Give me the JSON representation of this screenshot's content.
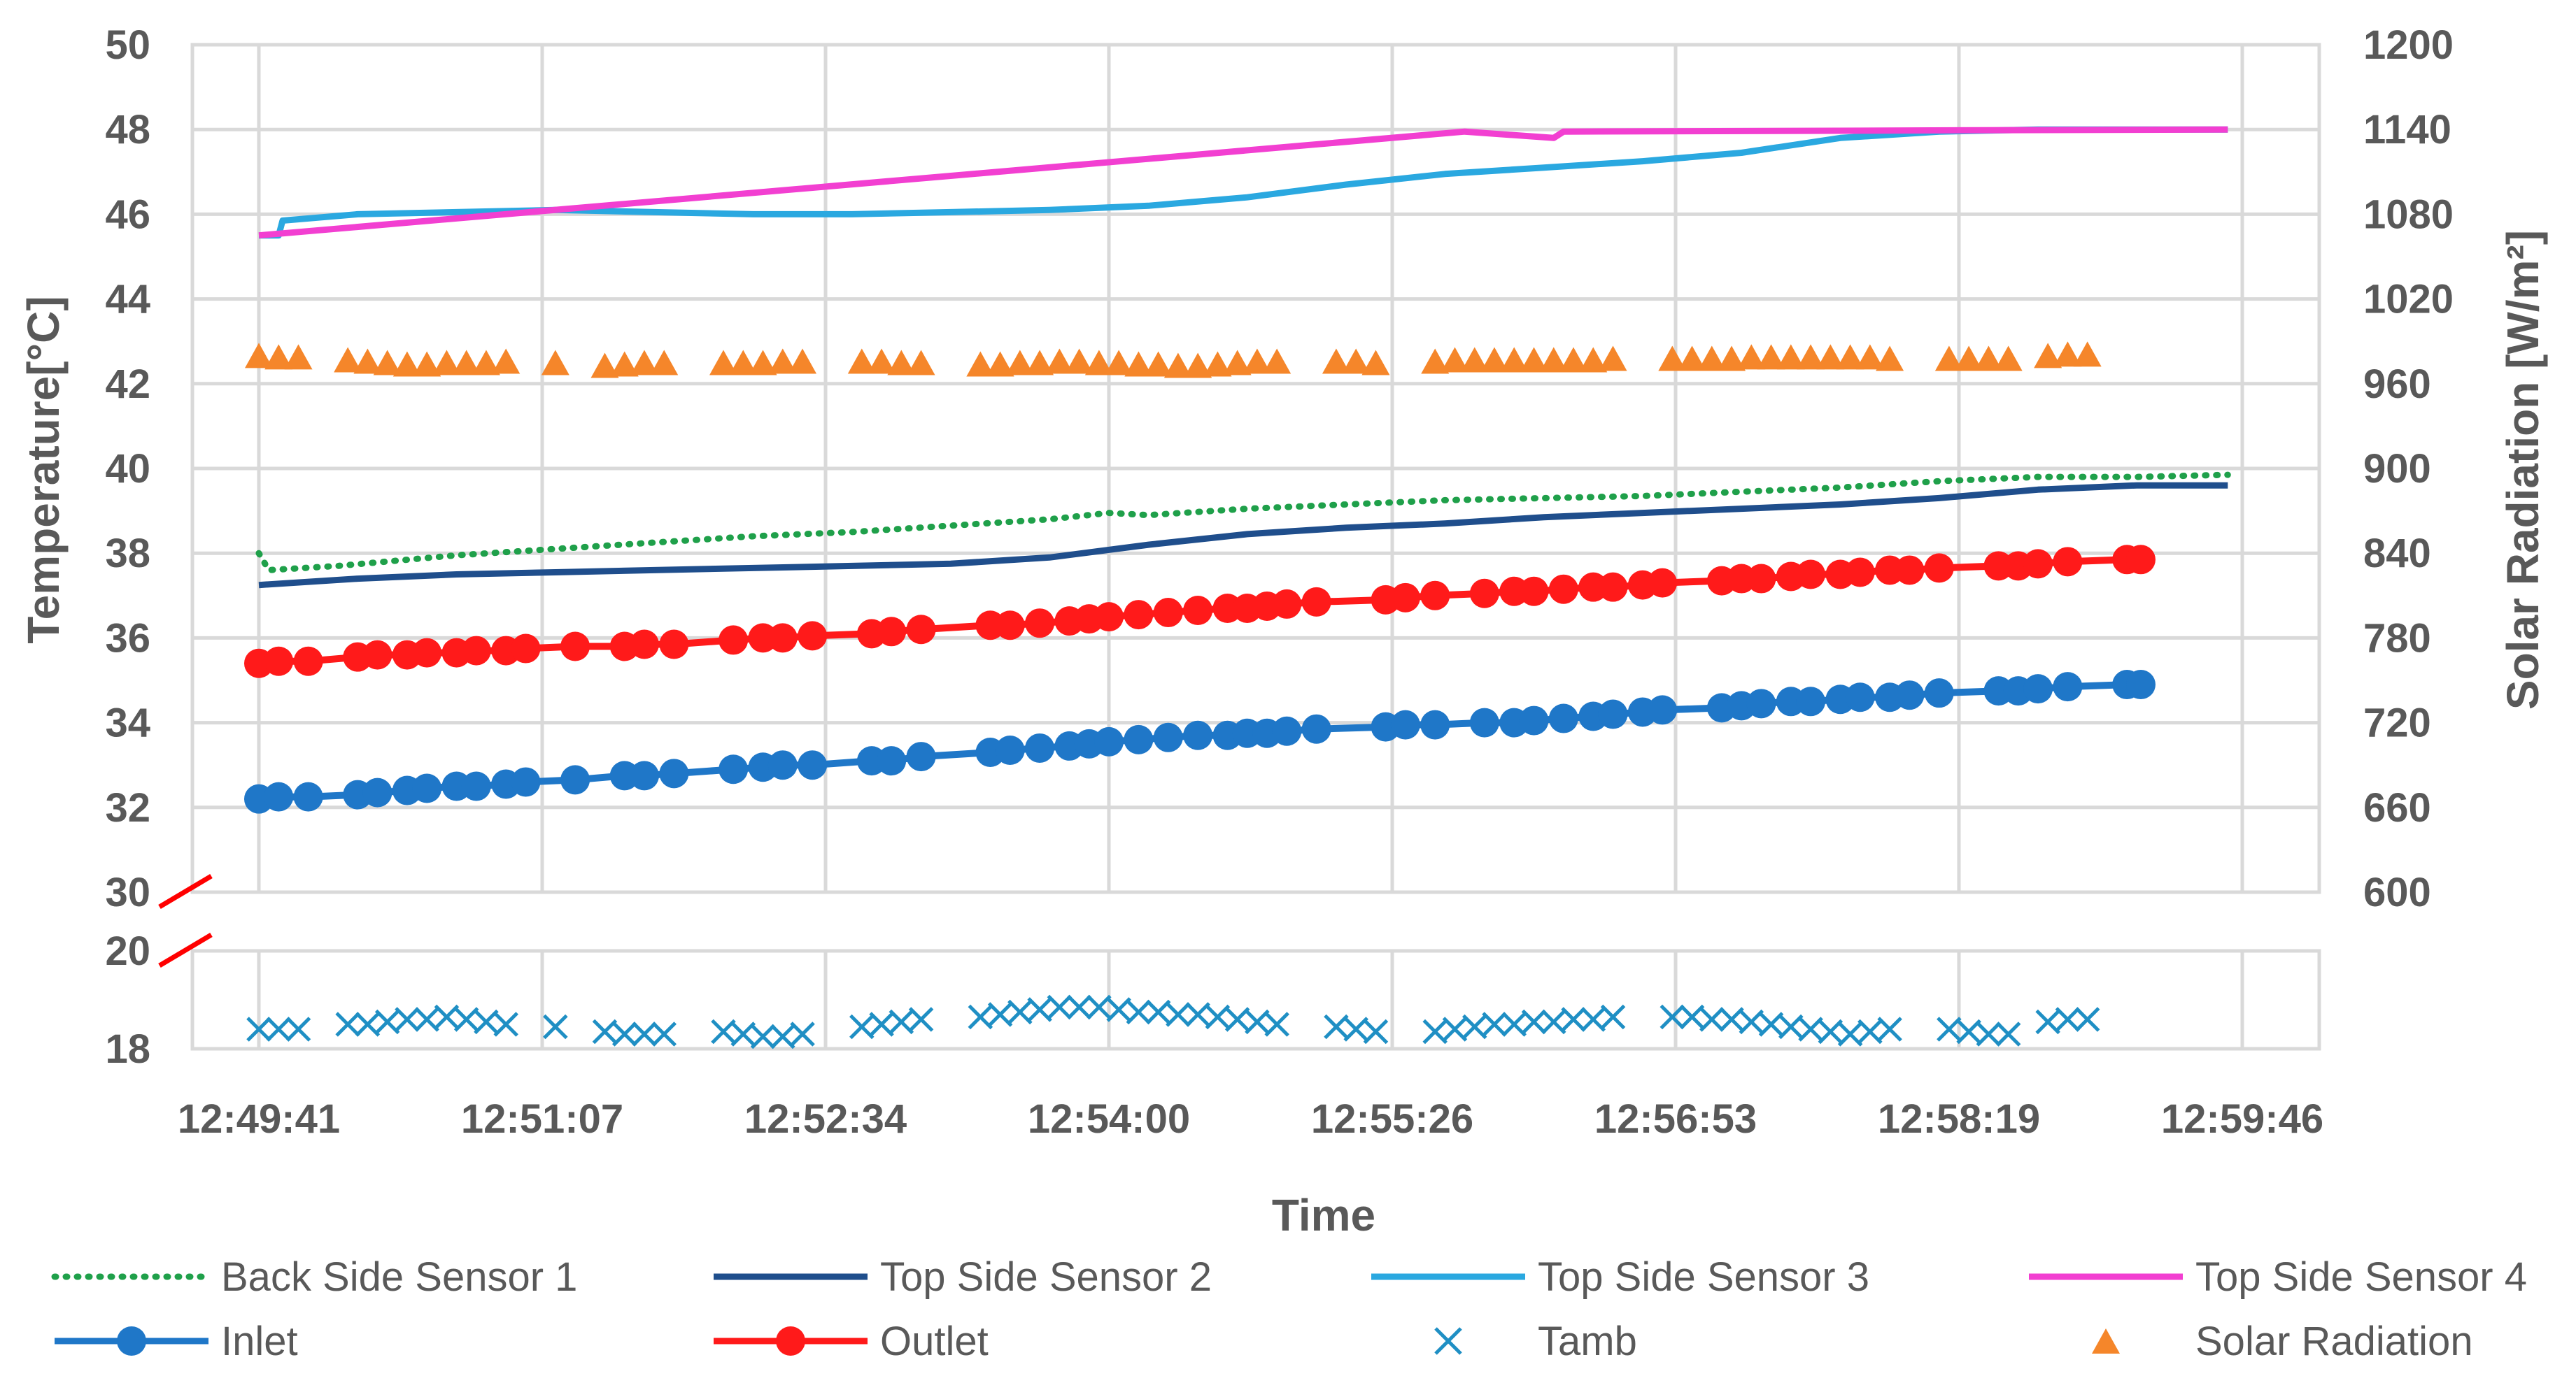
{
  "chart_data": {
    "type": "line",
    "xlabel": "Time",
    "ylabel": "Temperature[°C]",
    "y2label": "Solar Radiation [W/m²]",
    "x_ticks": [
      "12:49:41",
      "12:51:07",
      "12:52:34",
      "12:54:00",
      "12:55:26",
      "12:56:53",
      "12:58:19",
      "12:59:46"
    ],
    "x_range_minutes": [
      0,
      10.08
    ],
    "y_upper_ticks": [
      "50",
      "48",
      "46",
      "44",
      "42",
      "40",
      "38",
      "36",
      "34",
      "32",
      "30"
    ],
    "y_upper_range": [
      30,
      50
    ],
    "y_lower_ticks": [
      "20",
      "18"
    ],
    "y_lower_range": [
      18,
      20
    ],
    "y2_ticks": [
      "1200",
      "1140",
      "1080",
      "1020",
      "960",
      "900",
      "840",
      "780",
      "720",
      "660",
      "600"
    ],
    "y2_range": [
      600,
      1200
    ],
    "series": [
      {
        "name": "Back Side Sensor 1",
        "color": "#1fa04a",
        "style": "dotted",
        "axis": "left",
        "x": [
          0,
          0.05,
          0.4,
          1,
          1.5,
          2,
          2.5,
          3,
          3.5,
          4,
          4.3,
          4.5,
          5,
          5.5,
          6,
          6.5,
          7,
          7.5,
          8,
          8.5,
          9,
          9.5,
          9.96
        ],
        "y": [
          38.0,
          37.6,
          37.7,
          37.95,
          38.1,
          38.25,
          38.4,
          38.5,
          38.65,
          38.8,
          38.95,
          38.9,
          39.05,
          39.15,
          39.25,
          39.3,
          39.35,
          39.45,
          39.55,
          39.7,
          39.8,
          39.8,
          39.85
        ]
      },
      {
        "name": "Top Side Sensor 2",
        "color": "#1f4e8c",
        "style": "solid",
        "axis": "left",
        "x": [
          0,
          0.5,
          1,
          1.5,
          2,
          2.5,
          3,
          3.5,
          4,
          4.5,
          5,
          5.5,
          6,
          6.5,
          7,
          7.5,
          8,
          8.5,
          9,
          9.5,
          9.96
        ],
        "y": [
          37.25,
          37.4,
          37.5,
          37.55,
          37.6,
          37.65,
          37.7,
          37.75,
          37.9,
          38.2,
          38.45,
          38.6,
          38.7,
          38.85,
          38.95,
          39.05,
          39.15,
          39.3,
          39.5,
          39.6,
          39.6
        ]
      },
      {
        "name": "Top Side Sensor 3",
        "color": "#2aa8e0",
        "style": "solid",
        "axis": "left",
        "x": [
          0,
          0.1,
          0.12,
          0.5,
          1,
          1.5,
          2,
          2.5,
          3,
          3.5,
          4,
          4.5,
          5,
          5.5,
          6,
          6.5,
          7,
          7.5,
          8,
          8.5,
          9,
          9.5,
          9.96
        ],
        "y": [
          45.5,
          45.5,
          45.85,
          46.0,
          46.05,
          46.1,
          46.05,
          46.0,
          46.0,
          46.05,
          46.1,
          46.2,
          46.4,
          46.7,
          46.95,
          47.1,
          47.25,
          47.45,
          47.8,
          47.95,
          48.0,
          48.0,
          48.0
        ]
      },
      {
        "name": "Top Side Sensor 4",
        "color": "#f23fd1",
        "style": "solid",
        "axis": "left",
        "x": [
          0,
          6.1,
          6.55,
          6.6,
          9.96
        ],
        "y": [
          45.5,
          47.95,
          47.8,
          47.95,
          48.0
        ]
      },
      {
        "name": "Inlet",
        "color": "#1f77c8",
        "style": "line-marker",
        "marker": "circle",
        "axis": "left",
        "x": [
          0,
          0.1,
          0.25,
          0.5,
          0.6,
          0.75,
          0.85,
          1.0,
          1.1,
          1.25,
          1.35,
          1.6,
          1.85,
          1.95,
          2.1,
          2.4,
          2.55,
          2.65,
          2.8,
          3.1,
          3.2,
          3.35,
          3.7,
          3.8,
          3.95,
          4.1,
          4.2,
          4.3,
          4.45,
          4.6,
          4.75,
          4.9,
          5.0,
          5.1,
          5.2,
          5.35,
          5.7,
          5.8,
          5.95,
          6.2,
          6.35,
          6.45,
          6.6,
          6.75,
          6.85,
          7.0,
          7.1,
          7.4,
          7.5,
          7.6,
          7.75,
          7.85,
          8.0,
          8.1,
          8.25,
          8.35,
          8.5,
          8.8,
          8.9,
          9.0,
          9.15,
          9.45,
          9.52
        ],
        "y": [
          32.2,
          32.25,
          32.25,
          32.3,
          32.35,
          32.4,
          32.45,
          32.5,
          32.5,
          32.55,
          32.6,
          32.65,
          32.75,
          32.75,
          32.8,
          32.9,
          32.95,
          33.0,
          33.0,
          33.1,
          33.1,
          33.2,
          33.3,
          33.35,
          33.4,
          33.45,
          33.5,
          33.55,
          33.6,
          33.65,
          33.7,
          33.7,
          33.75,
          33.75,
          33.8,
          33.85,
          33.9,
          33.95,
          33.95,
          34.0,
          34.0,
          34.05,
          34.1,
          34.15,
          34.2,
          34.25,
          34.3,
          34.35,
          34.4,
          34.45,
          34.5,
          34.5,
          34.55,
          34.6,
          34.6,
          34.65,
          34.7,
          34.75,
          34.75,
          34.8,
          34.85,
          34.9,
          34.9
        ]
      },
      {
        "name": "Outlet",
        "color": "#ff1a1a",
        "style": "line-marker",
        "marker": "circle",
        "axis": "left",
        "x": [
          0,
          0.1,
          0.25,
          0.5,
          0.6,
          0.75,
          0.85,
          1.0,
          1.1,
          1.25,
          1.35,
          1.6,
          1.85,
          1.95,
          2.1,
          2.4,
          2.55,
          2.65,
          2.8,
          3.1,
          3.2,
          3.35,
          3.7,
          3.8,
          3.95,
          4.1,
          4.2,
          4.3,
          4.45,
          4.6,
          4.75,
          4.9,
          5.0,
          5.1,
          5.2,
          5.35,
          5.7,
          5.8,
          5.95,
          6.2,
          6.35,
          6.45,
          6.6,
          6.75,
          6.85,
          7.0,
          7.1,
          7.4,
          7.5,
          7.6,
          7.75,
          7.85,
          8.0,
          8.1,
          8.25,
          8.35,
          8.5,
          8.8,
          8.9,
          9.0,
          9.15,
          9.45,
          9.52
        ],
        "y": [
          35.4,
          35.45,
          35.45,
          35.55,
          35.6,
          35.6,
          35.65,
          35.65,
          35.7,
          35.7,
          35.75,
          35.8,
          35.8,
          35.85,
          35.85,
          35.95,
          36.0,
          36.0,
          36.05,
          36.1,
          36.15,
          36.2,
          36.3,
          36.3,
          36.35,
          36.4,
          36.45,
          36.5,
          36.55,
          36.6,
          36.65,
          36.7,
          36.7,
          36.75,
          36.8,
          36.85,
          36.9,
          36.95,
          37.0,
          37.05,
          37.1,
          37.1,
          37.15,
          37.2,
          37.2,
          37.25,
          37.3,
          37.35,
          37.4,
          37.4,
          37.45,
          37.5,
          37.5,
          37.55,
          37.6,
          37.6,
          37.65,
          37.7,
          37.7,
          37.75,
          37.8,
          37.85,
          37.85
        ]
      },
      {
        "name": "Tamb",
        "color": "#1f8fc4",
        "style": "marker",
        "marker": "x",
        "axis": "left-lower",
        "x": [
          0,
          0.1,
          0.2,
          0.45,
          0.55,
          0.65,
          0.75,
          0.85,
          0.95,
          1.05,
          1.15,
          1.25,
          1.5,
          1.75,
          1.85,
          1.95,
          2.05,
          2.35,
          2.45,
          2.55,
          2.65,
          2.75,
          3.05,
          3.15,
          3.25,
          3.35,
          3.65,
          3.75,
          3.85,
          3.95,
          4.05,
          4.15,
          4.25,
          4.35,
          4.45,
          4.55,
          4.65,
          4.75,
          4.85,
          4.95,
          5.05,
          5.15,
          5.45,
          5.55,
          5.65,
          5.95,
          6.05,
          6.15,
          6.25,
          6.35,
          6.45,
          6.55,
          6.65,
          6.75,
          6.85,
          7.15,
          7.25,
          7.35,
          7.45,
          7.55,
          7.65,
          7.75,
          7.85,
          7.95,
          8.05,
          8.15,
          8.25,
          8.55,
          8.65,
          8.75,
          8.85,
          9.05,
          9.15,
          9.25
        ],
        "y": [
          18.4,
          18.4,
          18.4,
          18.5,
          18.5,
          18.55,
          18.6,
          18.6,
          18.65,
          18.6,
          18.55,
          18.5,
          18.45,
          18.35,
          18.3,
          18.3,
          18.3,
          18.35,
          18.3,
          18.25,
          18.25,
          18.3,
          18.45,
          18.5,
          18.55,
          18.6,
          18.65,
          18.7,
          18.75,
          18.8,
          18.85,
          18.85,
          18.85,
          18.8,
          18.75,
          18.75,
          18.7,
          18.7,
          18.65,
          18.6,
          18.55,
          18.5,
          18.45,
          18.4,
          18.35,
          18.35,
          18.4,
          18.45,
          18.5,
          18.5,
          18.55,
          18.55,
          18.6,
          18.6,
          18.65,
          18.65,
          18.65,
          18.6,
          18.6,
          18.55,
          18.5,
          18.45,
          18.4,
          18.35,
          18.3,
          18.35,
          18.4,
          18.4,
          18.35,
          18.3,
          18.3,
          18.55,
          18.6,
          18.6
        ]
      },
      {
        "name": "Solar Radiation",
        "color": "#f5862a",
        "style": "marker",
        "marker": "triangle",
        "axis": "right",
        "x": [
          0,
          0.1,
          0.2,
          0.45,
          0.55,
          0.65,
          0.75,
          0.85,
          0.95,
          1.05,
          1.15,
          1.25,
          1.5,
          1.75,
          1.85,
          1.95,
          2.05,
          2.35,
          2.45,
          2.55,
          2.65,
          2.75,
          3.05,
          3.15,
          3.25,
          3.35,
          3.65,
          3.75,
          3.85,
          3.95,
          4.05,
          4.15,
          4.25,
          4.35,
          4.45,
          4.55,
          4.65,
          4.75,
          4.85,
          4.95,
          5.05,
          5.15,
          5.45,
          5.55,
          5.65,
          5.95,
          6.05,
          6.15,
          6.25,
          6.35,
          6.45,
          6.55,
          6.65,
          6.75,
          6.85,
          7.15,
          7.25,
          7.35,
          7.45,
          7.55,
          7.65,
          7.75,
          7.85,
          7.95,
          8.05,
          8.15,
          8.25,
          8.55,
          8.65,
          8.75,
          8.85,
          9.05,
          9.15,
          9.25
        ],
        "y": [
          980,
          979,
          979,
          977,
          976,
          975,
          974,
          974,
          975,
          975,
          975,
          976,
          975,
          973,
          974,
          975,
          975,
          975,
          975,
          975,
          976,
          976,
          976,
          976,
          975,
          975,
          974,
          974,
          975,
          975,
          976,
          976,
          975,
          975,
          974,
          974,
          973,
          973,
          974,
          975,
          976,
          976,
          976,
          976,
          975,
          976,
          977,
          977,
          977,
          977,
          977,
          977,
          977,
          977,
          978,
          978,
          978,
          978,
          978,
          979,
          979,
          979,
          979,
          979,
          979,
          979,
          978,
          978,
          978,
          978,
          978,
          980,
          981,
          981
        ]
      }
    ]
  }
}
